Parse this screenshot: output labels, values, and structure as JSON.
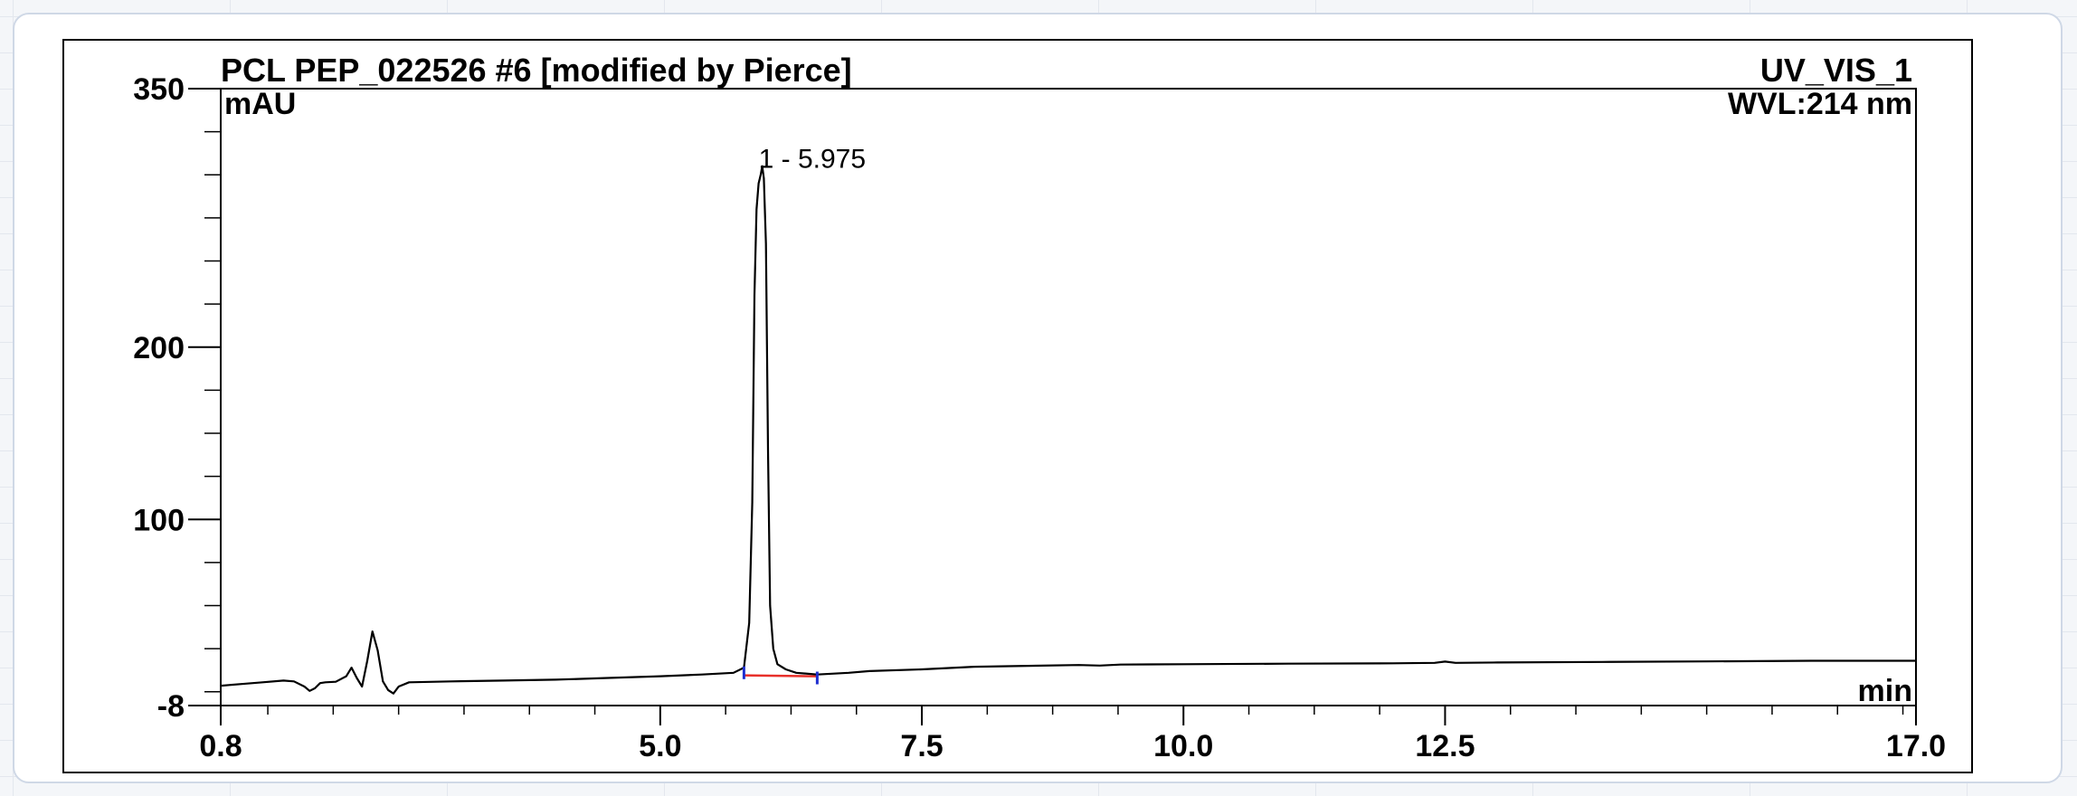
{
  "chart_data": {
    "type": "line",
    "title": "PCL PEP_022526 #6 [modified by Pierce]",
    "channel": "UV_VIS_1",
    "wavelength": "WVL:214 nm",
    "ylabel": "mAU",
    "xlabel": "min",
    "xlim": [
      0.8,
      17.0
    ],
    "ylim": [
      -8,
      350
    ],
    "x_ticks": [
      0.8,
      5.0,
      7.5,
      10.0,
      12.5,
      17.0
    ],
    "x_tick_labels": [
      "0.8",
      "5.0",
      "7.5",
      "10.0",
      "12.5",
      "17.0"
    ],
    "y_ticks": [
      -8,
      100,
      200,
      350
    ],
    "y_tick_labels": [
      "-8",
      "100",
      "200",
      "350"
    ],
    "peak_label": {
      "text": "1 - 5.975",
      "x": 5.975,
      "y": 300
    },
    "integration_baseline": {
      "x": [
        5.8,
        6.5
      ],
      "y": [
        9.5,
        9.0
      ],
      "color": "#e8302a"
    },
    "integration_markers": [
      {
        "x": 5.8,
        "y": 11,
        "color": "#1f2fd0"
      },
      {
        "x": 6.5,
        "y": 8,
        "color": "#1f2fd0"
      }
    ],
    "line_color": "#000000",
    "series": [
      {
        "x": [
          0.8,
          1.0,
          1.2,
          1.4,
          1.5,
          1.6,
          1.65,
          1.7,
          1.75,
          1.8,
          1.9,
          2.0,
          2.05,
          2.1,
          2.15,
          2.2,
          2.25,
          2.3,
          2.35,
          2.4,
          2.45,
          2.5,
          2.6,
          3.0,
          3.5,
          4.0,
          4.5,
          5.0,
          5.4,
          5.7,
          5.8,
          5.85,
          5.88,
          5.9,
          5.92,
          5.94,
          5.96,
          5.975,
          5.99,
          6.01,
          6.03,
          6.05,
          6.08,
          6.12,
          6.2,
          6.3,
          6.5,
          6.8,
          7.0,
          7.5,
          8.0,
          9.0,
          9.2,
          9.4,
          10.0,
          11.0,
          12.0,
          12.4,
          12.5,
          12.6,
          13.0,
          14.0,
          15.0,
          16.0,
          17.0
        ],
        "y": [
          3.5,
          4.5,
          5.5,
          6.5,
          6,
          3,
          0.5,
          2,
          5,
          5.5,
          5.8,
          9,
          14,
          8,
          3,
          18,
          35,
          24,
          6,
          1,
          -1,
          3,
          5.5,
          6,
          6.5,
          7,
          8,
          9,
          10,
          11,
          14,
          40,
          110,
          230,
          280,
          295,
          300,
          305,
          298,
          260,
          140,
          50,
          25,
          16,
          13,
          11,
          10,
          11,
          12,
          13,
          14.5,
          15.5,
          15.2,
          15.8,
          16,
          16.3,
          16.5,
          16.8,
          17.5,
          16.8,
          17,
          17.3,
          17.6,
          18,
          18
        ]
      }
    ]
  }
}
